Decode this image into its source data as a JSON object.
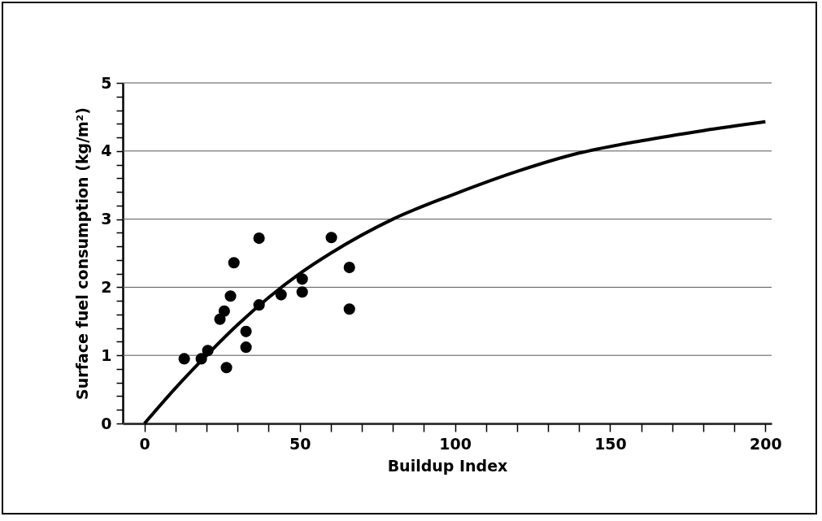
{
  "chart_data": {
    "type": "scatter",
    "xlabel": "Buildup Index",
    "ylabel": "Surface fuel consumption (kg/m²)",
    "xlim": [
      -7,
      202
    ],
    "ylim": [
      0,
      5
    ],
    "xticks": [
      0,
      {
        "value": 10,
        "label": null
      },
      {
        "value": 20,
        "label": null
      },
      {
        "value": 30,
        "label": null
      },
      {
        "value": 40,
        "label": null
      },
      50,
      {
        "value": 60,
        "label": null
      },
      {
        "value": 70,
        "label": null
      },
      {
        "value": 80,
        "label": null
      },
      {
        "value": 90,
        "label": null
      },
      100,
      {
        "value": 110,
        "label": null
      },
      {
        "value": 120,
        "label": null
      },
      {
        "value": 130,
        "label": null
      },
      {
        "value": 140,
        "label": null
      },
      150,
      {
        "value": 160,
        "label": null
      },
      {
        "value": 170,
        "label": null
      },
      {
        "value": 180,
        "label": null
      },
      {
        "value": 190,
        "label": null
      },
      200
    ],
    "yticks": [
      0,
      {
        "value": 0.2,
        "label": null
      },
      {
        "value": 0.4,
        "label": null
      },
      {
        "value": 0.6,
        "label": null
      },
      {
        "value": 0.8,
        "label": null
      },
      1,
      {
        "value": 1.2,
        "label": null
      },
      {
        "value": 1.4,
        "label": null
      },
      {
        "value": 1.6,
        "label": null
      },
      {
        "value": 1.8,
        "label": null
      },
      2,
      {
        "value": 2.2,
        "label": null
      },
      {
        "value": 2.4,
        "label": null
      },
      {
        "value": 2.6,
        "label": null
      },
      {
        "value": 2.8,
        "label": null
      },
      3,
      {
        "value": 3.2,
        "label": null
      },
      {
        "value": 3.4,
        "label": null
      },
      {
        "value": 3.6,
        "label": null
      },
      {
        "value": 3.8,
        "label": null
      },
      4,
      {
        "value": 4.2,
        "label": null
      },
      {
        "value": 4.4,
        "label": null
      },
      {
        "value": 4.6,
        "label": null
      },
      {
        "value": 4.8,
        "label": null
      },
      5
    ],
    "grid": "y",
    "series": [
      {
        "color": "#000000",
        "marker": "circle",
        "x": [
          12.8,
          18.3,
          20.4,
          24.3,
          25.7,
          26.4,
          27.7,
          28.8,
          32.7,
          32.7,
          36.9,
          36.9,
          44,
          50.8,
          50.8,
          60.2,
          66,
          66
        ],
        "values": [
          0.95,
          0.95,
          1.07,
          1.53,
          1.65,
          0.82,
          1.87,
          2.36,
          1.35,
          1.12,
          1.74,
          2.72,
          1.89,
          2.12,
          1.93,
          2.73,
          2.29,
          1.68
        ]
      },
      {
        "type": "line",
        "color": "#000000",
        "marker": "none",
        "line_style": "solid",
        "x": [
          0,
          10,
          20,
          30,
          40,
          50,
          60,
          80,
          100,
          120,
          140,
          160,
          180,
          200
        ],
        "values": [
          0,
          0.52,
          1.0,
          1.45,
          1.85,
          2.2,
          2.5,
          3.0,
          3.37,
          3.7,
          3.97,
          4.15,
          4.3,
          4.43
        ]
      }
    ]
  }
}
